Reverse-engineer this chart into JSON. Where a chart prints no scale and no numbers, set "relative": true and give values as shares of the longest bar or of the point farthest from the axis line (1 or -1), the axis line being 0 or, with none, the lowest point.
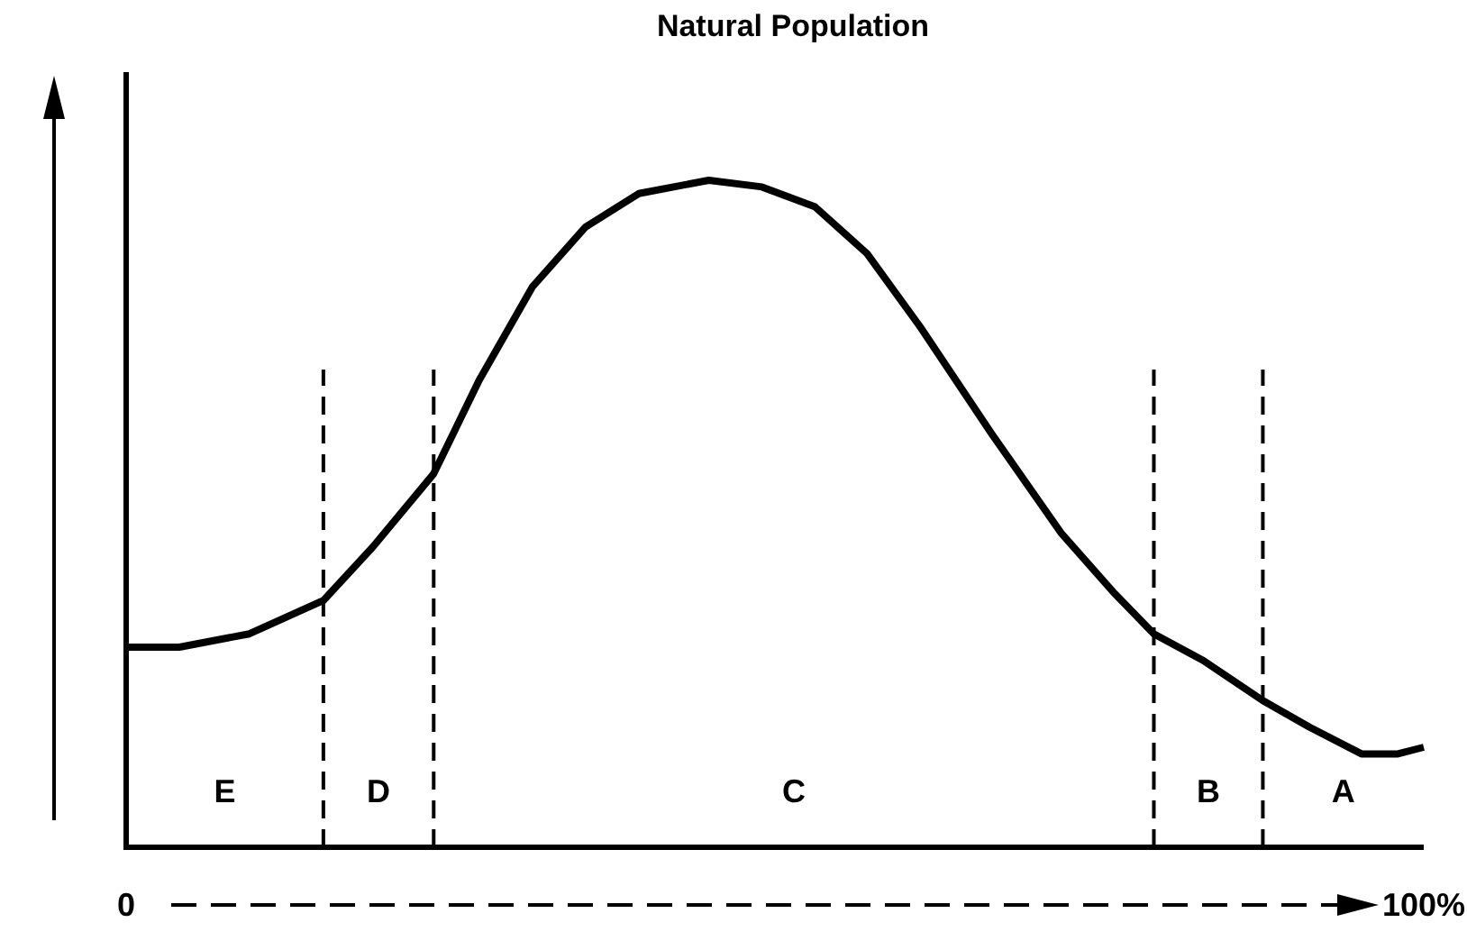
{
  "chart_data": {
    "type": "line",
    "title": "Natural Population",
    "relative": true,
    "xlim": [
      0,
      100
    ],
    "xticks": [
      {
        "value": 0,
        "label": "0"
      },
      {
        "value": 100,
        "label": "100%"
      }
    ],
    "series": [
      {
        "color": "#000000",
        "line_style": "solid",
        "x": [
          0,
          4.1,
          9.5,
          15.2,
          19,
          23.7,
          27.2,
          31.3,
          35.4,
          39.5,
          44.9,
          49,
          53.1,
          57.1,
          61.2,
          66.7,
          72.1,
          76.2,
          79.2,
          83,
          87.6,
          91.2,
          95.2,
          98,
          100
        ],
        "values": [
          0.3,
          0.3,
          0.32,
          0.37,
          0.45,
          0.56,
          0.7,
          0.84,
          0.93,
          0.98,
          1,
          0.99,
          0.96,
          0.89,
          0.78,
          0.62,
          0.47,
          0.38,
          0.32,
          0.28,
          0.22,
          0.18,
          0.14,
          0.14,
          0.15
        ]
      }
    ],
    "ref_lines": [
      {
        "axis": "x",
        "value": 15.2,
        "line_style": "dashed"
      },
      {
        "axis": "x",
        "value": 23.7,
        "line_style": "dashed"
      },
      {
        "axis": "x",
        "value": 79.2,
        "line_style": "dashed"
      },
      {
        "axis": "x",
        "value": 87.6,
        "line_style": "dashed"
      }
    ],
    "annotations": [
      "E",
      "D",
      "C",
      "B",
      "A"
    ]
  }
}
